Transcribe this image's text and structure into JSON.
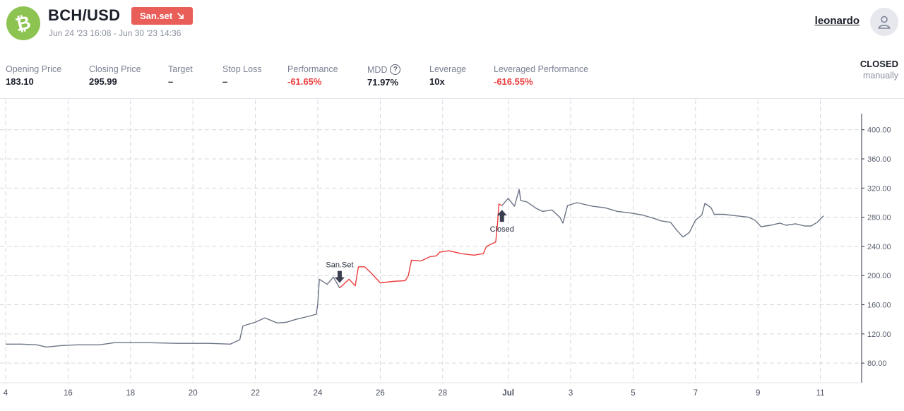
{
  "header": {
    "pair": "BCH/USD",
    "coin_symbol": "₿",
    "badge_label": "San.set",
    "badge_icon": "arrow-down-right-icon",
    "date_range": "Jun 24 '23 16:08 - Jun 30 '23 14:36",
    "username": "leonardo",
    "avatar_icon": "user-icon"
  },
  "stats": [
    {
      "label": "Opening Price",
      "value": "183.10",
      "color": "normal"
    },
    {
      "label": "Closing Price",
      "value": "295.99",
      "color": "normal"
    },
    {
      "label": "Target",
      "value": "–",
      "color": "normal"
    },
    {
      "label": "Stop Loss",
      "value": "–",
      "color": "normal"
    },
    {
      "label": "Performance",
      "value": "-61.65%",
      "color": "red"
    },
    {
      "label": "MDD",
      "value": "71.97%",
      "color": "normal",
      "help": "?"
    },
    {
      "label": "Leverage",
      "value": "10x",
      "color": "normal"
    },
    {
      "label": "Leveraged Performance",
      "value": "-616.55%",
      "color": "red"
    }
  ],
  "status": {
    "title": "CLOSED",
    "subtitle": "manually"
  },
  "colors": {
    "accent_red": "#ec3d3d",
    "badge": "#e95e58",
    "coin": "#8dc351",
    "line_gray": "#6b7385"
  },
  "chart_data": {
    "type": "line",
    "x_ticks": [
      "4",
      "16",
      "18",
      "20",
      "22",
      "24",
      "26",
      "28",
      "Jul",
      "3",
      "5",
      "7",
      "9",
      "11"
    ],
    "y_ticks": [
      "400.00",
      "360.00",
      "320.00",
      "280.00",
      "240.00",
      "200.00",
      "160.00",
      "120.00",
      "80.00"
    ],
    "ylim": [
      53,
      422
    ],
    "grid": true,
    "markers": [
      {
        "label": "San.Set",
        "x_day": 24.7,
        "price": 183.1
      },
      {
        "label": "Closed",
        "x_day": 29.9,
        "price": 296
      }
    ],
    "series": [
      {
        "segment": "before",
        "points": [
          [
            14,
            106
          ],
          [
            14.5,
            106
          ],
          [
            15,
            105
          ],
          [
            15.3,
            102
          ],
          [
            15.8,
            104
          ],
          [
            16.3,
            105
          ],
          [
            17,
            105
          ],
          [
            17.5,
            108
          ],
          [
            18.5,
            108
          ],
          [
            19.5,
            107
          ],
          [
            20.5,
            107
          ],
          [
            21.2,
            106
          ],
          [
            21.5,
            112
          ],
          [
            21.6,
            131
          ],
          [
            22,
            136
          ],
          [
            22.3,
            142
          ],
          [
            22.7,
            135
          ],
          [
            23,
            136
          ],
          [
            23.3,
            140
          ],
          [
            23.7,
            144
          ],
          [
            23.95,
            147
          ],
          [
            24,
            162
          ],
          [
            24.05,
            195
          ],
          [
            24.3,
            188
          ],
          [
            24.5,
            198
          ],
          [
            24.7,
            183
          ]
        ]
      },
      {
        "segment": "trade",
        "points": [
          [
            24.7,
            183
          ],
          [
            25,
            195
          ],
          [
            25.2,
            186
          ],
          [
            25.3,
            212
          ],
          [
            25.5,
            212
          ],
          [
            25.7,
            204
          ],
          [
            26,
            190
          ],
          [
            26.4,
            192
          ],
          [
            26.8,
            193
          ],
          [
            26.9,
            200
          ],
          [
            27,
            221
          ],
          [
            27.3,
            220
          ],
          [
            27.6,
            226
          ],
          [
            27.8,
            227
          ],
          [
            27.9,
            232
          ],
          [
            28.2,
            234
          ],
          [
            28.6,
            230
          ],
          [
            29,
            228
          ],
          [
            29.3,
            230
          ],
          [
            29.4,
            240
          ],
          [
            29.7,
            246
          ],
          [
            29.75,
            268
          ],
          [
            29.8,
            298
          ],
          [
            29.9,
            296
          ]
        ]
      },
      {
        "segment": "after",
        "points": [
          [
            29.9,
            296
          ],
          [
            30.1,
            306
          ],
          [
            30.3,
            295
          ],
          [
            30.45,
            318
          ],
          [
            30.5,
            303
          ],
          [
            30.7,
            301
          ],
          [
            31,
            292
          ],
          [
            31.2,
            288
          ],
          [
            31.5,
            290
          ],
          [
            31.75,
            280
          ],
          [
            31.85,
            272
          ],
          [
            32,
            296
          ],
          [
            32.3,
            300
          ],
          [
            32.8,
            295
          ],
          [
            33.2,
            293
          ],
          [
            33.6,
            288
          ],
          [
            34,
            286
          ],
          [
            34.4,
            283
          ],
          [
            34.8,
            278
          ],
          [
            35,
            275
          ],
          [
            35.3,
            273
          ],
          [
            35.5,
            262
          ],
          [
            35.7,
            253
          ],
          [
            35.9,
            259
          ],
          [
            36.1,
            276
          ],
          [
            36.3,
            283
          ],
          [
            36.4,
            299
          ],
          [
            36.6,
            293
          ],
          [
            36.7,
            284
          ],
          [
            37,
            284
          ],
          [
            37.4,
            282
          ],
          [
            37.8,
            280
          ],
          [
            38,
            276
          ],
          [
            38.2,
            267
          ],
          [
            38.5,
            269
          ],
          [
            38.8,
            272
          ],
          [
            39,
            269
          ],
          [
            39.3,
            271
          ],
          [
            39.6,
            268
          ],
          [
            39.8,
            268
          ],
          [
            40,
            273
          ],
          [
            40.2,
            282
          ]
        ]
      }
    ]
  }
}
